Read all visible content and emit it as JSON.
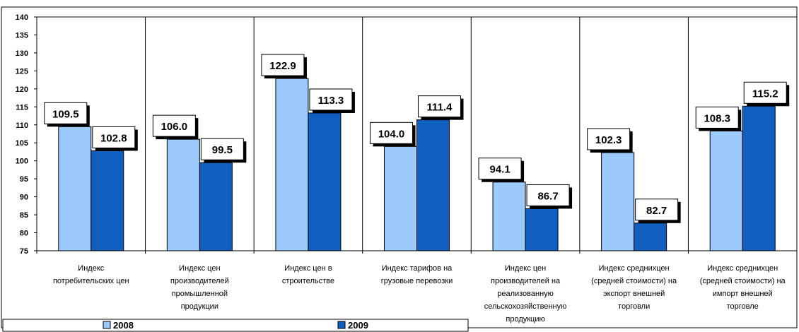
{
  "chart_data": {
    "type": "bar",
    "categories": [
      [
        "Индекс",
        "потребительских цен"
      ],
      [
        "Индекс цен",
        "производителей",
        "промышленной",
        "продукции"
      ],
      [
        "Индекс цен в",
        "строительстве"
      ],
      [
        "Индекс тарифов на",
        "грузовые перевозки"
      ],
      [
        "Индекс цен",
        "производителей на",
        "реализованную",
        "сельскохозяйственную",
        "продукцию"
      ],
      [
        "Индекс среднихцен",
        "(средней стоимости) на",
        "экспорт внешней",
        "торговли"
      ],
      [
        "Индекс среднихцен",
        "(средней стоимости) на",
        "импорт внешней",
        "торговле"
      ]
    ],
    "series": [
      {
        "name": "2008",
        "values": [
          109.5,
          106.0,
          122.9,
          104.0,
          94.1,
          102.3,
          108.3
        ],
        "color": "#9ccafd"
      },
      {
        "name": "2009",
        "values": [
          102.8,
          99.5,
          113.3,
          111.4,
          86.7,
          82.7,
          115.2
        ],
        "color": "#0f5ec0"
      }
    ],
    "data_labels": [
      [
        "109.5",
        "106.0",
        "122.9",
        "104.0",
        "94.1",
        "102.3",
        "108.3"
      ],
      [
        "102.8",
        "99.5",
        "113.3",
        "111.4",
        "86.7",
        "82.7",
        "115.2"
      ]
    ],
    "ylim": [
      75,
      140
    ],
    "yticks": [
      75,
      80,
      85,
      90,
      95,
      100,
      105,
      110,
      115,
      120,
      125,
      130,
      135,
      140
    ],
    "grid": false,
    "legend": "bottom"
  }
}
